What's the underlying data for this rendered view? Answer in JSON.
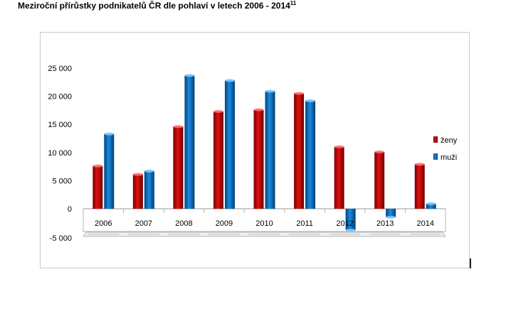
{
  "title": {
    "text": "Meziroční přírůstky podnikatelů ČR dle pohlaví v letech 2006 - 2014",
    "footnote": "11"
  },
  "chart_data": {
    "type": "bar",
    "categories": [
      "2006",
      "2007",
      "2008",
      "2009",
      "2010",
      "2011",
      "2012",
      "2013",
      "2014"
    ],
    "series": [
      {
        "name": "ženy",
        "color": "#c00000",
        "values": [
          7600,
          6100,
          14600,
          17300,
          17600,
          20500,
          11000,
          10100,
          7900
        ]
      },
      {
        "name": "muži",
        "color": "#0070c0",
        "values": [
          13300,
          6700,
          23700,
          22800,
          20900,
          19200,
          -3800,
          -1500,
          900
        ]
      }
    ],
    "y_ticks": [
      "25 000",
      "20 000",
      "15 000",
      "10 000",
      "5 000",
      "0",
      "-5 000"
    ],
    "ylim": [
      -5000,
      25000
    ],
    "grid": false,
    "legend_position": "right"
  }
}
